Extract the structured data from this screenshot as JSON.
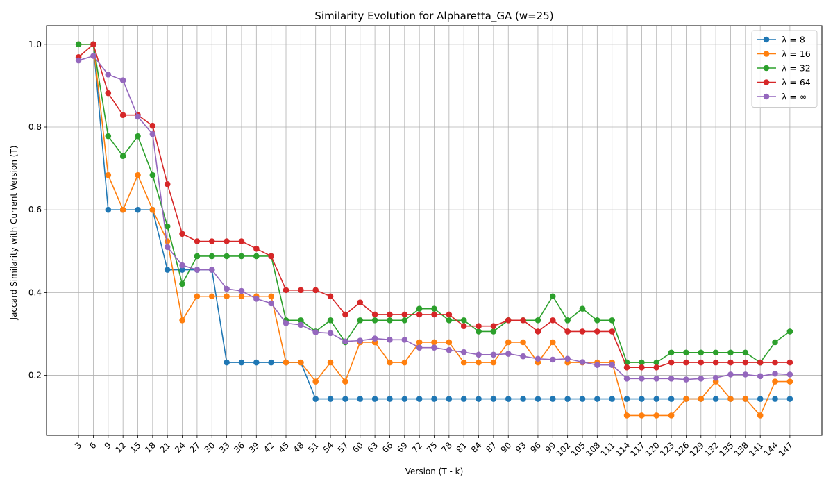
{
  "chart_data": {
    "type": "line",
    "title": "Similarity Evolution for Alpharetta_GA (w=25)",
    "xlabel": "Version (T - k)",
    "ylabel": "Jaccard Similarity with Current Version (T)",
    "x": [
      3,
      6,
      9,
      12,
      15,
      18,
      21,
      24,
      27,
      30,
      33,
      36,
      39,
      42,
      45,
      48,
      51,
      54,
      57,
      60,
      63,
      66,
      69,
      72,
      75,
      78,
      81,
      84,
      87,
      90,
      93,
      96,
      99,
      102,
      105,
      108,
      111,
      114,
      117,
      120,
      123,
      126,
      129,
      132,
      135,
      138,
      141,
      144,
      147
    ],
    "ylim": [
      0.055,
      1.045
    ],
    "yticks": [
      0.2,
      0.4,
      0.6,
      0.8,
      1.0
    ],
    "ytick_labels": [
      "0.2",
      "0.4",
      "0.6",
      "0.8",
      "1.0"
    ],
    "grid": true,
    "legend_position": "top-right",
    "series": [
      {
        "name": "λ = 8",
        "color": "#1f77b4",
        "values": [
          1.0,
          1.0,
          0.6,
          0.6,
          0.6,
          0.6,
          0.455,
          0.455,
          0.455,
          0.455,
          0.231,
          0.231,
          0.231,
          0.231,
          0.231,
          0.231,
          0.143,
          0.143,
          0.143,
          0.143,
          0.143,
          0.143,
          0.143,
          0.143,
          0.143,
          0.143,
          0.143,
          0.143,
          0.143,
          0.143,
          0.143,
          0.143,
          0.143,
          0.143,
          0.143,
          0.143,
          0.143,
          0.143,
          0.143,
          0.143,
          0.143,
          0.143,
          0.143,
          0.143,
          0.143,
          0.143,
          0.143,
          0.143,
          0.143
        ]
      },
      {
        "name": "λ = 16",
        "color": "#ff7f0e",
        "values": [
          1.0,
          1.0,
          0.684,
          0.6,
          0.684,
          0.6,
          0.524,
          0.333,
          0.391,
          0.391,
          0.391,
          0.391,
          0.391,
          0.391,
          0.231,
          0.231,
          0.185,
          0.231,
          0.185,
          0.28,
          0.28,
          0.231,
          0.231,
          0.28,
          0.28,
          0.28,
          0.231,
          0.231,
          0.231,
          0.28,
          0.28,
          0.231,
          0.28,
          0.231,
          0.231,
          0.231,
          0.231,
          0.103,
          0.103,
          0.103,
          0.103,
          0.143,
          0.143,
          0.185,
          0.143,
          0.143,
          0.103,
          0.185,
          0.185
        ]
      },
      {
        "name": "λ = 32",
        "color": "#2ca02c",
        "values": [
          1.0,
          1.0,
          0.778,
          0.73,
          0.778,
          0.684,
          0.56,
          0.421,
          0.488,
          0.488,
          0.488,
          0.488,
          0.488,
          0.488,
          0.333,
          0.333,
          0.306,
          0.333,
          0.28,
          0.333,
          0.333,
          0.333,
          0.333,
          0.361,
          0.361,
          0.333,
          0.333,
          0.306,
          0.306,
          0.333,
          0.333,
          0.333,
          0.391,
          0.333,
          0.361,
          0.333,
          0.333,
          0.231,
          0.231,
          0.231,
          0.255,
          0.255,
          0.255,
          0.255,
          0.255,
          0.255,
          0.231,
          0.28,
          0.306
        ]
      },
      {
        "name": "λ = 64",
        "color": "#d62728",
        "values": [
          0.969,
          1.0,
          0.882,
          0.829,
          0.829,
          0.803,
          0.662,
          0.542,
          0.524,
          0.524,
          0.524,
          0.524,
          0.506,
          0.488,
          0.406,
          0.406,
          0.406,
          0.391,
          0.347,
          0.376,
          0.347,
          0.347,
          0.347,
          0.347,
          0.347,
          0.347,
          0.319,
          0.319,
          0.319,
          0.333,
          0.333,
          0.306,
          0.333,
          0.306,
          0.306,
          0.306,
          0.306,
          0.219,
          0.219,
          0.219,
          0.231,
          0.231,
          0.231,
          0.231,
          0.231,
          0.231,
          0.231,
          0.231,
          0.231
        ]
      },
      {
        "name": "λ = ∞",
        "color": "#9467bd",
        "values": [
          0.961,
          0.972,
          0.927,
          0.913,
          0.825,
          0.783,
          0.51,
          0.466,
          0.455,
          0.455,
          0.409,
          0.404,
          0.385,
          0.374,
          0.326,
          0.322,
          0.304,
          0.302,
          0.282,
          0.284,
          0.289,
          0.286,
          0.286,
          0.267,
          0.267,
          0.261,
          0.256,
          0.25,
          0.25,
          0.252,
          0.246,
          0.24,
          0.238,
          0.24,
          0.232,
          0.225,
          0.225,
          0.192,
          0.192,
          0.192,
          0.192,
          0.19,
          0.192,
          0.194,
          0.202,
          0.202,
          0.198,
          0.204,
          0.202
        ]
      }
    ]
  }
}
